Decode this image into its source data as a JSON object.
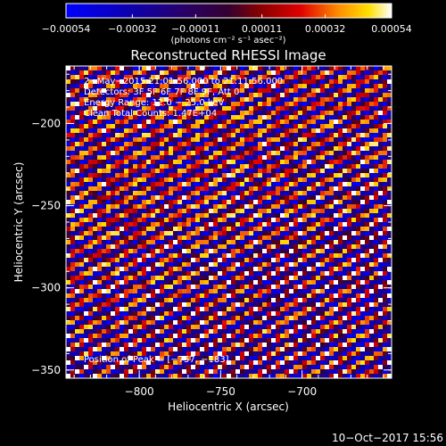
{
  "chart_data": {
    "type": "heatmap",
    "title": "Reconstructed RHESSI Image",
    "xlabel": "Heliocentric X (arcsec)",
    "ylabel": "Heliocentric Y (arcsec)",
    "xlim": [
      -845,
      -645
    ],
    "ylim": [
      -355,
      -165
    ],
    "xticks": [
      -800,
      -750,
      -700
    ],
    "xtick_labels": [
      "−800",
      "−750",
      "−700"
    ],
    "yticks": [
      -350,
      -300,
      -250,
      -200
    ],
    "ytick_labels": [
      "−350",
      "−300",
      "−250",
      "−200"
    ],
    "colorbar": {
      "min": -0.00054,
      "max": 0.00054,
      "ticks": [
        -0.00054,
        -0.00032,
        -0.00011,
        0.00011,
        0.00032,
        0.00054
      ],
      "tick_labels": [
        "−0.00054",
        "−0.00032",
        "−0.00011",
        "0.00011",
        "0.00032",
        "0.00054"
      ],
      "unit_label": "(photons cm⁻² s⁻¹ asec⁻²)"
    },
    "annotations": [
      "2−May−2015 21:01:56.000 to 21:11:56.000",
      "Detectors: 3F 5F 6F 7F 8F 9F, Att 0",
      "Energy Range: 12.0 − 25.0 keV",
      "Clean    Total Counts: 1.47E+04",
      "Position of Peak = [−757, −183]"
    ],
    "peak_position": [
      -757,
      -183
    ],
    "pattern": "diagonal stripes running from upper-left to lower-right, alternating positive (red/yellow/white) and negative (blue) flux"
  },
  "footer": {
    "timestamp": "10−Oct−2017 15:56"
  }
}
